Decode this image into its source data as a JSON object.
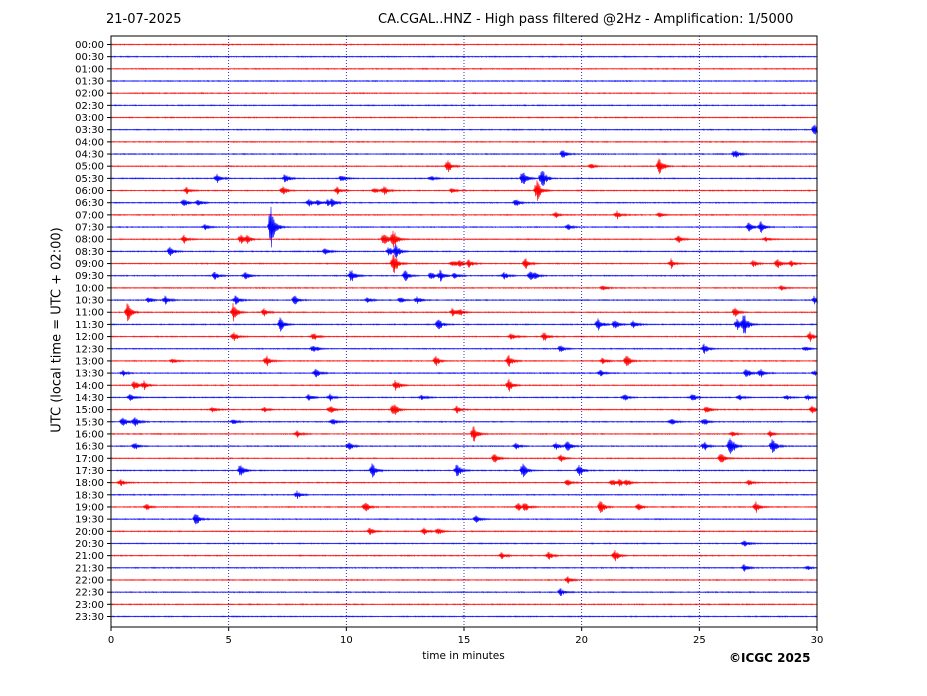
{
  "header": {
    "date": "21-07-2025",
    "title": "CA.CGAL..HNZ - High pass filtered @2Hz - Amplification: 1/5000"
  },
  "footer": {
    "copyright": "©ICGC 2025"
  },
  "colors": {
    "odd_trace": "#ff0000",
    "even_trace": "#0000ff",
    "grid": "#0000aa",
    "frame": "#000000"
  },
  "chart_data": {
    "type": "line",
    "title": "CA.CGAL..HNZ - High pass filtered @2Hz - Amplification: 1/5000",
    "xlabel": "time in minutes",
    "ylabel": "UTC (local time = UTC + 02:00)",
    "xlim": [
      0,
      30
    ],
    "xticks": [
      "0",
      "5",
      "10",
      "15",
      "20",
      "25",
      "30"
    ],
    "grid_x": [
      5,
      10,
      15,
      20,
      25
    ],
    "rows": [
      "00:00",
      "00:30",
      "01:00",
      "01:30",
      "02:00",
      "02:30",
      "03:00",
      "03:30",
      "04:00",
      "04:30",
      "05:00",
      "05:30",
      "06:00",
      "06:30",
      "07:00",
      "07:30",
      "08:00",
      "08:30",
      "09:00",
      "09:30",
      "10:00",
      "10:30",
      "11:00",
      "11:30",
      "12:00",
      "12:30",
      "13:00",
      "13:30",
      "14:00",
      "14:30",
      "15:00",
      "15:30",
      "16:00",
      "16:30",
      "17:00",
      "17:30",
      "18:00",
      "18:30",
      "19:00",
      "19:30",
      "20:00",
      "20:30",
      "21:00",
      "21:30",
      "22:00",
      "22:30",
      "23:00",
      "23:30"
    ],
    "events": [
      [
        7,
        29.9,
        0.8
      ],
      [
        9,
        19.2,
        0.5
      ],
      [
        9,
        26.5,
        0.5
      ],
      [
        10,
        14.3,
        0.7
      ],
      [
        10,
        20.4,
        0.3
      ],
      [
        10,
        23.3,
        1.0
      ],
      [
        11,
        4.5,
        0.6
      ],
      [
        11,
        7.4,
        0.5
      ],
      [
        11,
        9.8,
        0.4
      ],
      [
        11,
        13.6,
        0.3
      ],
      [
        11,
        17.5,
        0.9
      ],
      [
        11,
        18.3,
        1.2
      ],
      [
        12,
        3.2,
        0.4
      ],
      [
        12,
        7.3,
        0.5
      ],
      [
        12,
        9.6,
        0.4
      ],
      [
        12,
        11.2,
        0.3
      ],
      [
        12,
        11.6,
        0.5
      ],
      [
        12,
        14.5,
        0.3
      ],
      [
        12,
        18.1,
        1.2
      ],
      [
        13,
        3.1,
        0.4
      ],
      [
        13,
        3.7,
        0.4
      ],
      [
        13,
        8.4,
        0.5
      ],
      [
        13,
        8.8,
        0.3
      ],
      [
        13,
        9.2,
        0.3
      ],
      [
        13,
        9.4,
        0.4
      ],
      [
        13,
        17.2,
        0.4
      ],
      [
        14,
        18.9,
        0.3
      ],
      [
        14,
        21.5,
        0.4
      ],
      [
        14,
        23.3,
        0.3
      ],
      [
        15,
        6.8,
        2.5
      ],
      [
        15,
        4.0,
        0.3
      ],
      [
        15,
        19.4,
        0.4
      ],
      [
        15,
        27.1,
        0.6
      ],
      [
        15,
        27.6,
        0.6
      ],
      [
        16,
        3.1,
        0.4
      ],
      [
        16,
        5.5,
        0.5
      ],
      [
        16,
        5.8,
        0.4
      ],
      [
        16,
        11.6,
        0.8
      ],
      [
        16,
        12.0,
        1.0
      ],
      [
        16,
        24.1,
        0.4
      ],
      [
        16,
        27.8,
        0.3
      ],
      [
        17,
        2.5,
        0.5
      ],
      [
        17,
        9.1,
        0.4
      ],
      [
        17,
        11.8,
        0.5
      ],
      [
        17,
        12.1,
        0.8
      ],
      [
        18,
        12.0,
        1.3
      ],
      [
        18,
        14.5,
        0.4
      ],
      [
        18,
        14.8,
        0.4
      ],
      [
        18,
        15.2,
        0.4
      ],
      [
        18,
        17.6,
        0.6
      ],
      [
        18,
        23.8,
        0.5
      ],
      [
        18,
        27.3,
        0.4
      ],
      [
        18,
        28.3,
        0.6
      ],
      [
        18,
        28.9,
        0.3
      ],
      [
        19,
        4.4,
        0.4
      ],
      [
        19,
        5.7,
        0.4
      ],
      [
        19,
        10.2,
        0.7
      ],
      [
        19,
        12.5,
        0.6
      ],
      [
        19,
        13.6,
        0.5
      ],
      [
        19,
        14.0,
        0.6
      ],
      [
        19,
        14.6,
        0.4
      ],
      [
        19,
        16.7,
        0.4
      ],
      [
        19,
        17.8,
        0.5
      ],
      [
        19,
        18.0,
        0.4
      ],
      [
        20,
        20.9,
        0.3
      ],
      [
        20,
        28.5,
        0.3
      ],
      [
        21,
        1.6,
        0.3
      ],
      [
        21,
        2.3,
        0.5
      ],
      [
        21,
        5.3,
        0.6
      ],
      [
        21,
        7.8,
        0.5
      ],
      [
        21,
        10.9,
        0.3
      ],
      [
        21,
        12.3,
        0.3
      ],
      [
        21,
        13.0,
        0.4
      ],
      [
        21,
        29.9,
        0.5
      ],
      [
        22,
        0.7,
        1.0
      ],
      [
        22,
        5.2,
        1.0
      ],
      [
        22,
        6.5,
        0.4
      ],
      [
        22,
        14.5,
        0.4
      ],
      [
        22,
        14.8,
        0.4
      ],
      [
        22,
        26.5,
        0.5
      ],
      [
        23,
        7.2,
        0.8
      ],
      [
        23,
        13.9,
        0.7
      ],
      [
        23,
        20.7,
        0.7
      ],
      [
        23,
        21.4,
        0.6
      ],
      [
        23,
        22.2,
        0.5
      ],
      [
        23,
        26.6,
        0.6
      ],
      [
        23,
        26.9,
        1.2
      ],
      [
        24,
        5.2,
        0.6
      ],
      [
        24,
        8.6,
        0.4
      ],
      [
        24,
        17.0,
        0.4
      ],
      [
        24,
        18.4,
        0.5
      ],
      [
        24,
        29.7,
        0.5
      ],
      [
        25,
        8.6,
        0.5
      ],
      [
        25,
        19.1,
        0.4
      ],
      [
        25,
        25.2,
        0.5
      ],
      [
        25,
        29.5,
        0.3
      ],
      [
        26,
        2.6,
        0.3
      ],
      [
        26,
        6.6,
        0.6
      ],
      [
        26,
        13.8,
        0.5
      ],
      [
        26,
        16.9,
        0.7
      ],
      [
        26,
        20.9,
        0.4
      ],
      [
        26,
        21.9,
        0.7
      ],
      [
        27,
        0.5,
        0.3
      ],
      [
        27,
        8.7,
        0.6
      ],
      [
        27,
        20.8,
        0.4
      ],
      [
        27,
        27.0,
        0.5
      ],
      [
        27,
        27.6,
        0.5
      ],
      [
        27,
        29.9,
        0.3
      ],
      [
        28,
        1.0,
        0.5
      ],
      [
        28,
        1.4,
        0.4
      ],
      [
        28,
        12.1,
        0.6
      ],
      [
        28,
        16.9,
        0.7
      ],
      [
        29,
        0.8,
        0.4
      ],
      [
        29,
        8.4,
        0.4
      ],
      [
        29,
        9.3,
        0.4
      ],
      [
        29,
        13.2,
        0.3
      ],
      [
        29,
        21.8,
        0.4
      ],
      [
        29,
        24.7,
        0.4
      ],
      [
        29,
        26.7,
        0.3
      ],
      [
        29,
        28.7,
        0.3
      ],
      [
        29,
        29.6,
        0.3
      ],
      [
        30,
        4.3,
        0.3
      ],
      [
        30,
        6.5,
        0.3
      ],
      [
        30,
        9.3,
        0.5
      ],
      [
        30,
        12.0,
        0.8
      ],
      [
        30,
        14.7,
        0.4
      ],
      [
        30,
        25.3,
        0.4
      ],
      [
        30,
        29.8,
        0.4
      ],
      [
        31,
        0.5,
        0.6
      ],
      [
        31,
        1.0,
        0.6
      ],
      [
        31,
        5.2,
        0.3
      ],
      [
        31,
        9.4,
        0.4
      ],
      [
        31,
        23.8,
        0.4
      ],
      [
        31,
        25.2,
        0.4
      ],
      [
        32,
        7.9,
        0.4
      ],
      [
        32,
        15.4,
        1.0
      ],
      [
        32,
        26.4,
        0.3
      ],
      [
        32,
        28.0,
        0.3
      ],
      [
        33,
        1.0,
        0.4
      ],
      [
        33,
        10.1,
        0.5
      ],
      [
        33,
        17.2,
        0.4
      ],
      [
        33,
        18.9,
        0.4
      ],
      [
        33,
        19.4,
        0.6
      ],
      [
        33,
        25.2,
        0.5
      ],
      [
        33,
        26.3,
        1.3
      ],
      [
        33,
        28.1,
        0.8
      ],
      [
        34,
        16.3,
        0.6
      ],
      [
        34,
        19.1,
        0.4
      ],
      [
        34,
        25.9,
        0.6
      ],
      [
        35,
        5.5,
        0.7
      ],
      [
        35,
        11.1,
        0.8
      ],
      [
        35,
        14.7,
        0.8
      ],
      [
        35,
        17.5,
        0.8
      ],
      [
        35,
        19.9,
        0.6
      ],
      [
        36,
        0.4,
        0.4
      ],
      [
        36,
        19.4,
        0.4
      ],
      [
        36,
        21.3,
        0.4
      ],
      [
        36,
        21.6,
        0.4
      ],
      [
        36,
        21.9,
        0.4
      ],
      [
        36,
        27.1,
        0.3
      ],
      [
        37,
        7.9,
        0.4
      ],
      [
        38,
        1.5,
        0.4
      ],
      [
        38,
        10.8,
        0.6
      ],
      [
        38,
        17.3,
        0.5
      ],
      [
        38,
        17.6,
        0.4
      ],
      [
        38,
        20.8,
        0.8
      ],
      [
        38,
        22.4,
        0.4
      ],
      [
        38,
        27.4,
        0.6
      ],
      [
        39,
        3.6,
        0.7
      ],
      [
        39,
        15.5,
        0.4
      ],
      [
        40,
        11.0,
        0.4
      ],
      [
        40,
        13.3,
        0.4
      ],
      [
        40,
        13.9,
        0.4
      ],
      [
        41,
        26.9,
        0.4
      ],
      [
        42,
        16.6,
        0.4
      ],
      [
        42,
        18.6,
        0.4
      ],
      [
        42,
        21.4,
        0.6
      ],
      [
        43,
        26.9,
        0.4
      ],
      [
        43,
        29.6,
        0.2
      ],
      [
        44,
        19.4,
        0.4
      ],
      [
        45,
        19.1,
        0.4
      ]
    ]
  }
}
